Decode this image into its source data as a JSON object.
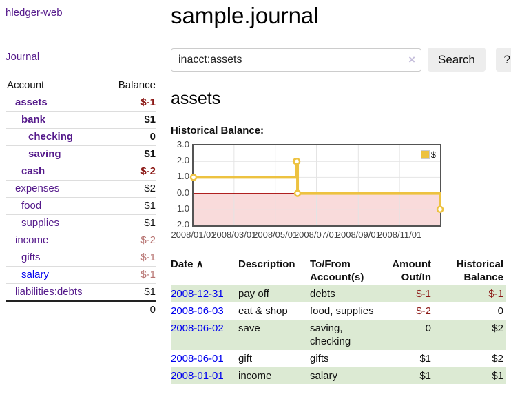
{
  "app": {
    "brand": "hledger-web",
    "nav_journal": "Journal"
  },
  "sidebar": {
    "header": {
      "account": "Account",
      "balance": "Balance"
    },
    "rows": [
      {
        "name": "assets",
        "balance": "$-1"
      },
      {
        "name": "bank",
        "balance": "$1"
      },
      {
        "name": "checking",
        "balance": "0"
      },
      {
        "name": "saving",
        "balance": "$1"
      },
      {
        "name": "cash",
        "balance": "$-2"
      },
      {
        "name": "expenses",
        "balance": "$2"
      },
      {
        "name": "food",
        "balance": "$1"
      },
      {
        "name": "supplies",
        "balance": "$1"
      },
      {
        "name": "income",
        "balance": "$-2"
      },
      {
        "name": "gifts",
        "balance": "$-1"
      },
      {
        "name": "salary",
        "balance": "$-1"
      },
      {
        "name": "liabilities:debts",
        "balance": "$1"
      }
    ],
    "total": "0"
  },
  "main": {
    "title": "sample.journal",
    "search": {
      "value": "inacct:assets",
      "clear_icon": "×",
      "button_label": "Search",
      "help_label": "?"
    },
    "account_heading": "assets",
    "chart_title": "Historical Balance:"
  },
  "chart_data": {
    "type": "line",
    "title": "Historical Balance:",
    "step": true,
    "x_range": [
      "2008/01/01",
      "2008/12/31"
    ],
    "ylim": [
      -2,
      3
    ],
    "x_ticks": [
      "2008/01/01",
      "2008/03/01",
      "2008/05/01",
      "2008/07/01",
      "2008/09/01",
      "2008/11/01"
    ],
    "y_ticks": [
      "3.0",
      "2.0",
      "1.0",
      "0.0",
      "-1.0",
      "-2.0"
    ],
    "series": [
      {
        "name": "$",
        "color": "#edc240",
        "points": [
          [
            "2008/01/01",
            1
          ],
          [
            "2008/06/01",
            2
          ],
          [
            "2008/06/02",
            2
          ],
          [
            "2008/06/03",
            0
          ],
          [
            "2008/12/31",
            -1
          ]
        ]
      }
    ],
    "grid": true,
    "legend_position": "top-right",
    "colors": {
      "line": "#edc240",
      "marker_fill": "#ffffff",
      "negative_region_fill": "#f9dbdb",
      "zero_line": "#a40000",
      "gridline": "#e4e4e4",
      "border": "#545454"
    }
  },
  "transactions": {
    "headers": {
      "date": "Date",
      "sort_arrow": "∧",
      "description": "Description",
      "accounts": "To/From Account(s)",
      "amount": "Amount Out/In",
      "balance": "Historical Balance"
    },
    "rows": [
      {
        "date": "2008-12-31",
        "description": "pay off",
        "accounts": "debts",
        "amount": "$-1",
        "balance": "$-1"
      },
      {
        "date": "2008-06-03",
        "description": "eat & shop",
        "accounts": "food, supplies",
        "amount": "$-2",
        "balance": "0"
      },
      {
        "date": "2008-06-02",
        "description": "save",
        "accounts": "saving, checking",
        "amount": "0",
        "balance": "$2"
      },
      {
        "date": "2008-06-01",
        "description": "gift",
        "accounts": "gifts",
        "amount": "$1",
        "balance": "$2"
      },
      {
        "date": "2008-01-01",
        "description": "income",
        "accounts": "salary",
        "amount": "$1",
        "balance": "$1"
      }
    ]
  }
}
